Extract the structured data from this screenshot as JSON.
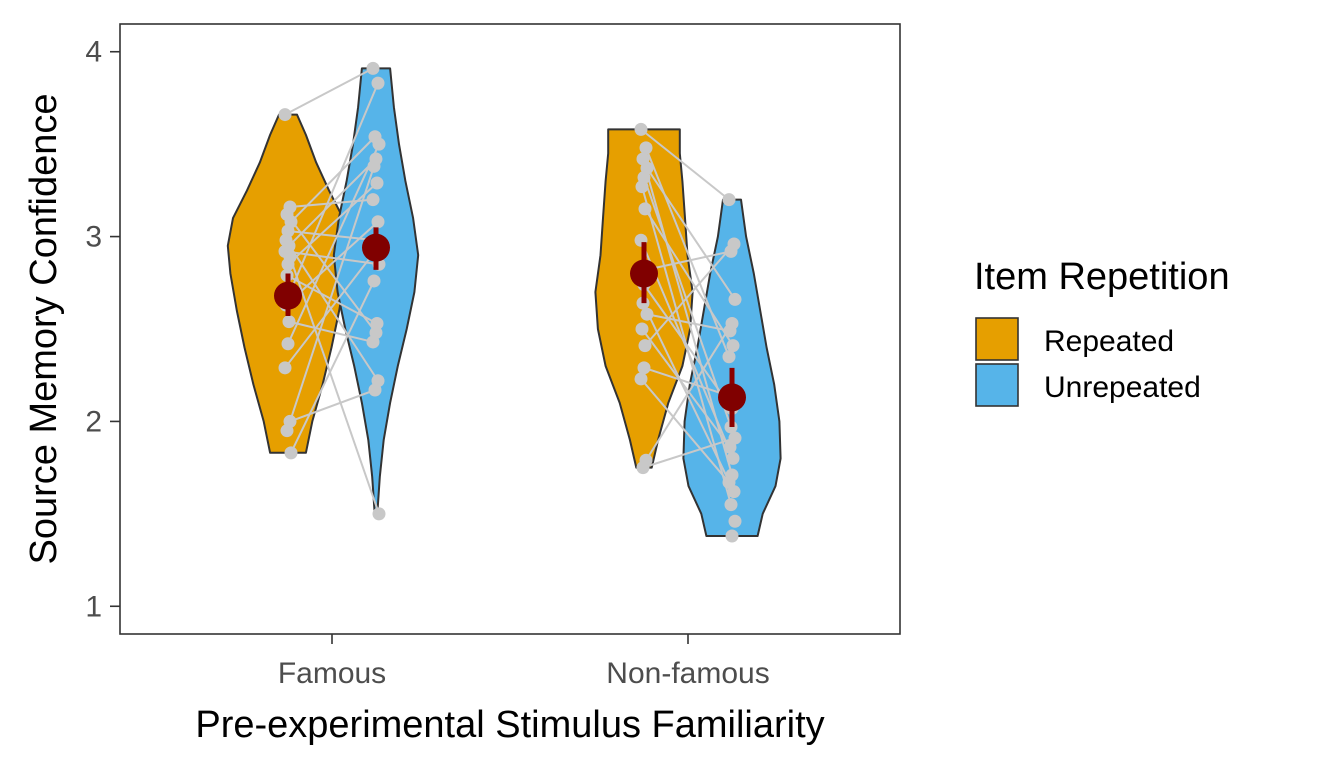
{
  "chart_data": {
    "type": "violin",
    "xlabel": "Pre-experimental Stimulus Familiarity",
    "ylabel": "Source Memory Confidence",
    "ylim": [
      0.85,
      4.15
    ],
    "yticks": [
      1,
      2,
      3,
      4
    ],
    "categories": [
      "Famous",
      "Non-famous"
    ],
    "grid": false,
    "legend": {
      "title": "Item Repetition",
      "position": "right",
      "entries": [
        {
          "label": "Repeated",
          "color": "#E69F00"
        },
        {
          "label": "Unrepeated",
          "color": "#56B4E9"
        }
      ]
    },
    "series": [
      {
        "name": "Repeated",
        "color": "#E69F00",
        "groups": [
          {
            "category": "Famous",
            "mean": 2.68,
            "ci": [
              2.57,
              2.8
            ],
            "points": [
              3.66,
              3.16,
              3.12,
              3.08,
              3.03,
              2.98,
              2.95,
              2.92,
              2.89,
              2.85,
              2.79,
              2.71,
              2.63,
              2.54,
              2.42,
              2.29,
              2.0,
              1.95,
              1.83
            ],
            "violin": [
              [
                1.83,
                0.14
              ],
              [
                2.0,
                0.19
              ],
              [
                2.2,
                0.27
              ],
              [
                2.4,
                0.34
              ],
              [
                2.6,
                0.4
              ],
              [
                2.8,
                0.45
              ],
              [
                2.95,
                0.47
              ],
              [
                3.1,
                0.43
              ],
              [
                3.25,
                0.32
              ],
              [
                3.4,
                0.22
              ],
              [
                3.55,
                0.14
              ],
              [
                3.66,
                0.07
              ]
            ]
          },
          {
            "category": "Non-famous",
            "mean": 2.8,
            "ci": [
              2.64,
              2.97
            ],
            "points": [
              3.58,
              3.48,
              3.42,
              3.37,
              3.32,
              3.27,
              3.15,
              2.98,
              2.82,
              2.74,
              2.64,
              2.58,
              2.5,
              2.41,
              2.29,
              2.23,
              1.79,
              1.75
            ],
            "violin": [
              [
                1.75,
                0.06
              ],
              [
                1.9,
                0.11
              ],
              [
                2.1,
                0.19
              ],
              [
                2.3,
                0.3
              ],
              [
                2.5,
                0.36
              ],
              [
                2.7,
                0.38
              ],
              [
                2.9,
                0.34
              ],
              [
                3.1,
                0.32
              ],
              [
                3.3,
                0.3
              ],
              [
                3.45,
                0.28
              ],
              [
                3.58,
                0.28
              ]
            ]
          }
        ]
      },
      {
        "name": "Unrepeated",
        "color": "#56B4E9",
        "groups": [
          {
            "category": "Famous",
            "mean": 2.94,
            "ci": [
              2.82,
              3.05
            ],
            "points": [
              3.91,
              3.83,
              3.54,
              3.5,
              3.42,
              3.38,
              3.29,
              3.2,
              3.08,
              2.98,
              2.92,
              2.85,
              2.76,
              2.53,
              2.48,
              2.43,
              2.22,
              2.17,
              1.5
            ],
            "violin": [
              [
                1.5,
                0.01
              ],
              [
                1.7,
                0.03
              ],
              [
                1.9,
                0.06
              ],
              [
                2.1,
                0.11
              ],
              [
                2.3,
                0.17
              ],
              [
                2.5,
                0.24
              ],
              [
                2.7,
                0.3
              ],
              [
                2.9,
                0.33
              ],
              [
                3.1,
                0.29
              ],
              [
                3.3,
                0.23
              ],
              [
                3.5,
                0.18
              ],
              [
                3.7,
                0.14
              ],
              [
                3.91,
                0.11
              ]
            ]
          },
          {
            "category": "Non-famous",
            "mean": 2.13,
            "ci": [
              1.97,
              2.29
            ],
            "points": [
              3.2,
              2.96,
              2.92,
              2.66,
              2.53,
              2.49,
              2.41,
              2.35,
              2.13,
              2.07,
              1.97,
              1.91,
              1.86,
              1.8,
              1.71,
              1.67,
              1.62,
              1.55,
              1.46,
              1.38
            ],
            "violin": [
              [
                1.38,
                0.2
              ],
              [
                1.5,
                0.24
              ],
              [
                1.65,
                0.34
              ],
              [
                1.8,
                0.38
              ],
              [
                2.0,
                0.37
              ],
              [
                2.2,
                0.33
              ],
              [
                2.4,
                0.27
              ],
              [
                2.6,
                0.22
              ],
              [
                2.8,
                0.17
              ],
              [
                3.0,
                0.11
              ],
              [
                3.2,
                0.07
              ]
            ]
          }
        ]
      }
    ]
  }
}
